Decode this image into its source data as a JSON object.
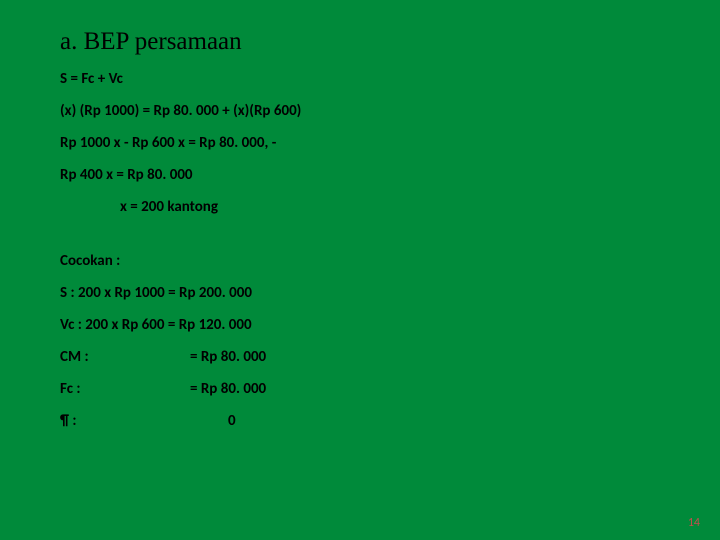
{
  "title": "a. BEP persamaan",
  "eq1": "S = Fc + Vc",
  "eq2": "(x) (Rp 1000) = Rp 80. 000 + (x)(Rp 600)",
  "eq3": "Rp 1000 x - Rp 600 x = Rp 80. 000, -",
  "eq4": "Rp 400 x = Rp 80. 000",
  "eq5": "x = 200 kantong",
  "check_header": "Cocokan :",
  "s_line": "S : 200 x Rp 1000 = Rp 200. 000",
  "vc_line": "Vc : 200 x Rp 600 = Rp 120. 000",
  "cm_label": "CM :",
  "cm_value": "= Rp   80. 000",
  "fc_label": "Fc :",
  "fc_value": "= Rp 80. 000",
  "pi_label": "¶   :",
  "pi_value": "0",
  "page_number": "14",
  "colors": {
    "background": "#008a3a",
    "text": "#000000",
    "pagenum": "#c0504d"
  }
}
